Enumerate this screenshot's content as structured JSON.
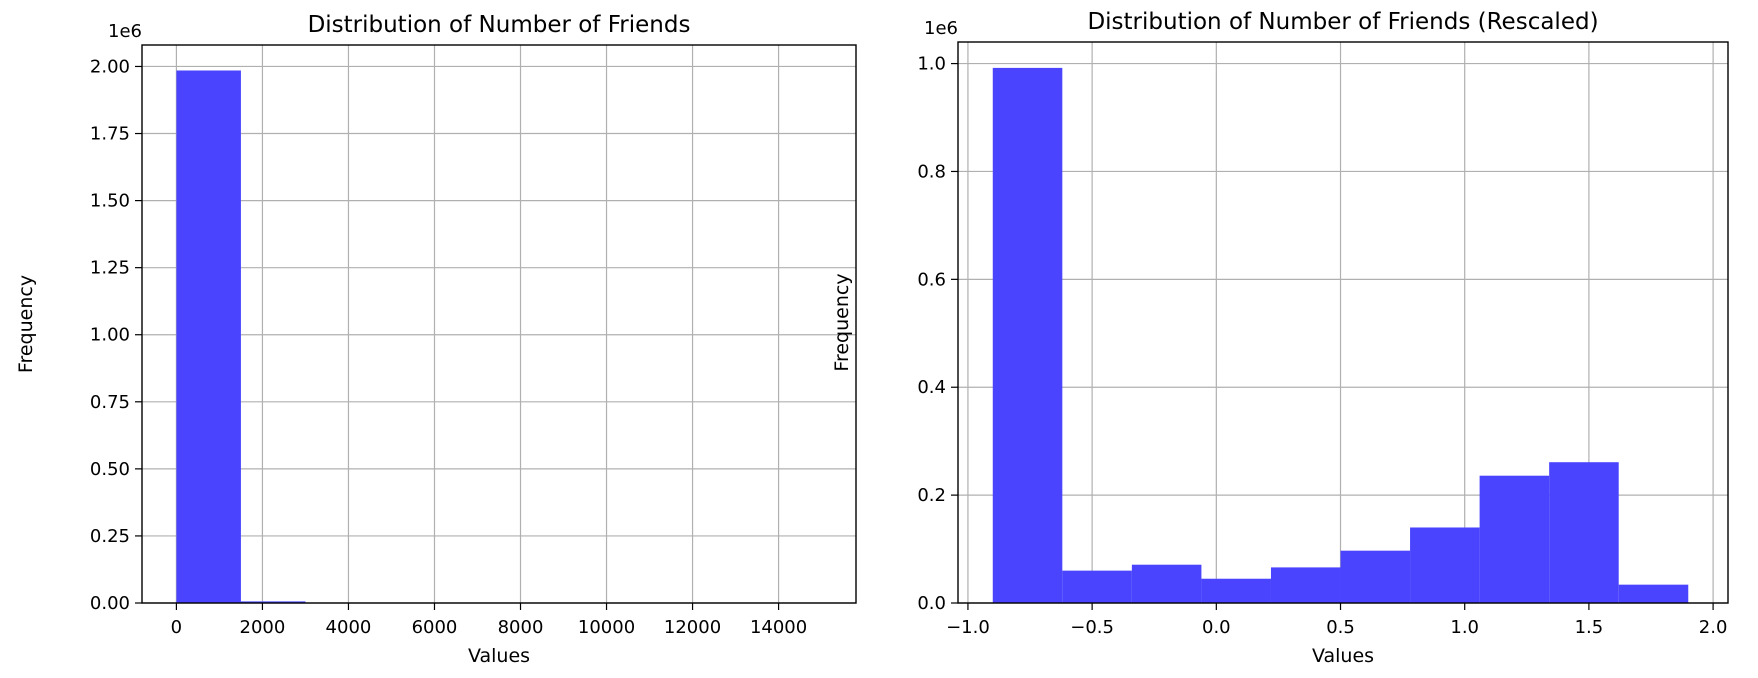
{
  "chart_data": [
    {
      "type": "bar",
      "title": "Distribution of Number of Friends",
      "xlabel": "Values",
      "ylabel": "Frequency",
      "y_offset_label": "1e6",
      "bar_color": "#4a44ff",
      "grid": true,
      "xlim": [
        -800,
        15800
      ],
      "ylim": [
        0,
        2.08
      ],
      "xticks": [
        0,
        2000,
        4000,
        6000,
        8000,
        10000,
        12000,
        14000
      ],
      "xtick_labels": [
        "0",
        "2000",
        "4000",
        "6000",
        "8000",
        "10000",
        "12000",
        "14000"
      ],
      "yticks": [
        0,
        0.25,
        0.5,
        0.75,
        1.0,
        1.25,
        1.5,
        1.75,
        2.0
      ],
      "ytick_labels": [
        "0.00",
        "0.25",
        "0.50",
        "0.75",
        "1.00",
        "1.25",
        "1.50",
        "1.75",
        "2.00"
      ],
      "bins": [
        {
          "x0": 0,
          "x1": 1500,
          "value": 1.985
        },
        {
          "x0": 1500,
          "x1": 3000,
          "value": 0.006
        },
        {
          "x0": 3000,
          "x1": 4500,
          "value": 0.0008
        },
        {
          "x0": 4500,
          "x1": 6000,
          "value": 0.0003
        },
        {
          "x0": 6000,
          "x1": 7500,
          "value": 0.0001
        },
        {
          "x0": 7500,
          "x1": 9000,
          "value": 0.0001
        },
        {
          "x0": 9000,
          "x1": 10500,
          "value": 0.0
        },
        {
          "x0": 10500,
          "x1": 12000,
          "value": 0.0
        },
        {
          "x0": 12000,
          "x1": 13500,
          "value": 0.0
        },
        {
          "x0": 13500,
          "x1": 15000,
          "value": 0.0
        }
      ]
    },
    {
      "type": "bar",
      "title": "Distribution of Number of Friends (Rescaled)",
      "xlabel": "Values",
      "ylabel": "Frequency",
      "y_offset_label": "1e6",
      "bar_color": "#4a44ff",
      "grid": true,
      "xlim": [
        -1.04,
        2.06
      ],
      "ylim": [
        0,
        1.04
      ],
      "xticks": [
        -1.0,
        -0.5,
        0.0,
        0.5,
        1.0,
        1.5,
        2.0
      ],
      "xtick_labels": [
        "−1.0",
        "−0.5",
        "0.0",
        "0.5",
        "1.0",
        "1.5",
        "2.0"
      ],
      "yticks": [
        0,
        0.2,
        0.4,
        0.6,
        0.8,
        1.0
      ],
      "ytick_labels": [
        "0.0",
        "0.2",
        "0.4",
        "0.6",
        "0.8",
        "1.0"
      ],
      "bins": [
        {
          "x0": -0.9,
          "x1": -0.62,
          "value": 0.992
        },
        {
          "x0": -0.62,
          "x1": -0.34,
          "value": 0.06
        },
        {
          "x0": -0.34,
          "x1": -0.06,
          "value": 0.071
        },
        {
          "x0": -0.06,
          "x1": 0.22,
          "value": 0.045
        },
        {
          "x0": 0.22,
          "x1": 0.5,
          "value": 0.066
        },
        {
          "x0": 0.5,
          "x1": 0.78,
          "value": 0.097
        },
        {
          "x0": 0.78,
          "x1": 1.06,
          "value": 0.14
        },
        {
          "x0": 1.06,
          "x1": 1.34,
          "value": 0.236
        },
        {
          "x0": 1.34,
          "x1": 1.62,
          "value": 0.261
        },
        {
          "x0": 1.62,
          "x1": 1.9,
          "value": 0.034
        }
      ]
    }
  ]
}
